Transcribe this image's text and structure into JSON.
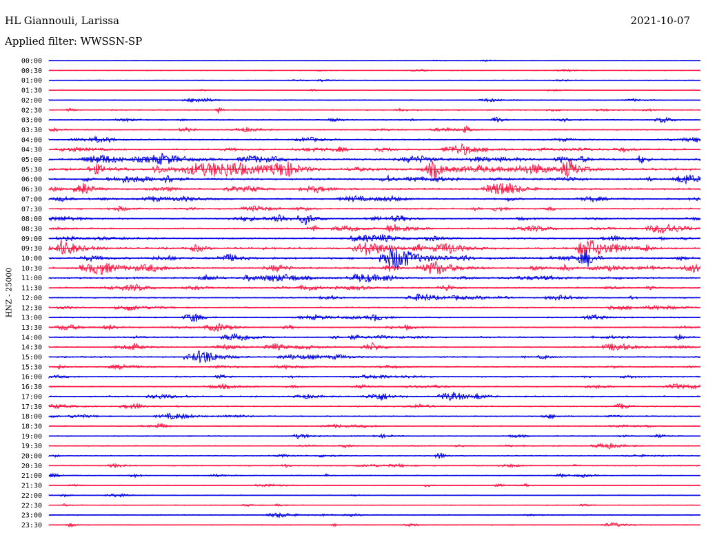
{
  "header": {
    "station": "HL Giannouli, Larissa",
    "date": "2021-10-07",
    "filter": "Applied filter: WWSSN-SP"
  },
  "chart_data": {
    "type": "line",
    "title": "HL Giannouli, Larissa",
    "ylabel": "HNZ - 25000",
    "row_labels": [
      "00:00",
      "00:30",
      "01:00",
      "01:30",
      "02:00",
      "02:30",
      "03:00",
      "03:30",
      "04:00",
      "04:30",
      "05:00",
      "05:30",
      "06:00",
      "06:30",
      "07:00",
      "07:30",
      "08:00",
      "08:30",
      "09:00",
      "09:30",
      "10:00",
      "10:30",
      "11:00",
      "11:30",
      "12:00",
      "12:30",
      "13:00",
      "13:30",
      "14:00",
      "14:30",
      "15:00",
      "15:30",
      "16:00",
      "16:30",
      "17:00",
      "17:30",
      "18:00",
      "18:30",
      "19:00",
      "19:30",
      "20:00",
      "20:30",
      "21:00",
      "21:30",
      "22:00",
      "22:30",
      "23:00",
      "23:30"
    ],
    "trace_colors": [
      "#0000e6",
      "#ff1744"
    ],
    "activity_level": [
      0.03,
      0.1,
      0.08,
      0.08,
      0.15,
      0.3,
      0.35,
      0.35,
      0.45,
      0.6,
      0.9,
      1.0,
      0.7,
      0.6,
      0.55,
      0.5,
      0.55,
      0.5,
      0.6,
      0.75,
      0.8,
      0.75,
      0.65,
      0.55,
      0.45,
      0.45,
      0.4,
      0.4,
      0.45,
      0.4,
      0.45,
      0.4,
      0.4,
      0.4,
      0.45,
      0.35,
      0.35,
      0.3,
      0.3,
      0.3,
      0.3,
      0.3,
      0.25,
      0.2,
      0.15,
      0.15,
      0.2,
      0.2
    ]
  }
}
